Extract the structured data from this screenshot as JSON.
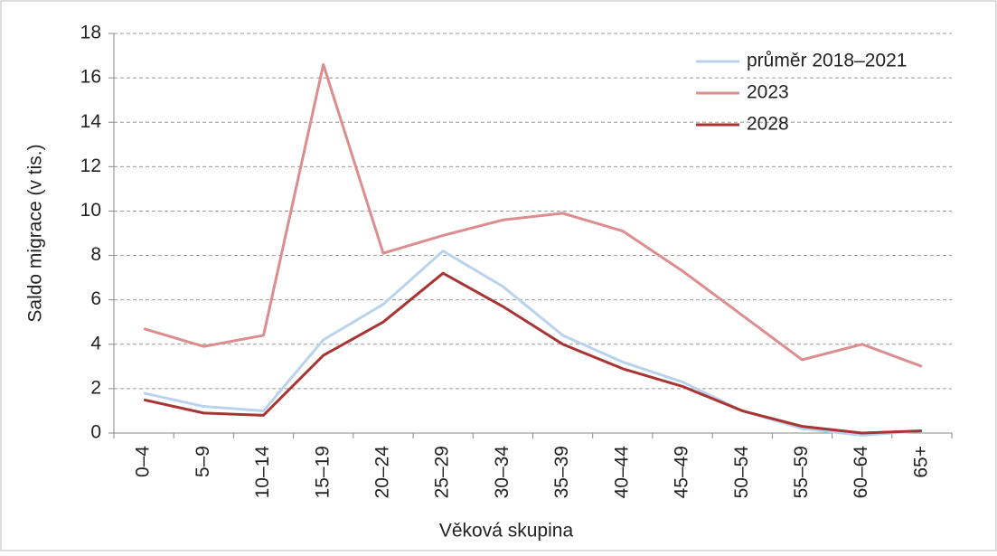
{
  "chart_data": {
    "type": "line",
    "x_label": "Věková skupina",
    "y_label": "Saldo migrace (v tis.)",
    "categories": [
      "0–4",
      "5–9",
      "10–14",
      "15–19",
      "20–24",
      "25–29",
      "30–34",
      "35–39",
      "40–44",
      "45–49",
      "50–54",
      "55–59",
      "60–64",
      "65+"
    ],
    "series": [
      {
        "name": "průměr 2018–2021",
        "color": "#b9d3ec",
        "values": [
          1.8,
          1.2,
          1.0,
          4.2,
          5.8,
          8.2,
          6.6,
          4.4,
          3.2,
          2.3,
          1.0,
          0.2,
          -0.1,
          0.1
        ]
      },
      {
        "name": "2023",
        "color": "#dc8d8d",
        "values": [
          4.7,
          3.9,
          4.4,
          16.6,
          8.1,
          8.9,
          9.6,
          9.9,
          9.1,
          7.3,
          5.3,
          3.3,
          4.0,
          3.0
        ]
      },
      {
        "name": "2028",
        "color": "#a83434",
        "values": [
          1.5,
          0.9,
          0.8,
          3.5,
          5.0,
          7.2,
          5.7,
          4.0,
          2.9,
          2.1,
          1.0,
          0.3,
          0.0,
          0.1
        ]
      }
    ],
    "ylim": [
      0,
      18
    ],
    "yticks": [
      0,
      2,
      4,
      6,
      8,
      10,
      12,
      14,
      16,
      18
    ],
    "grid": true,
    "legend": "top-right"
  }
}
